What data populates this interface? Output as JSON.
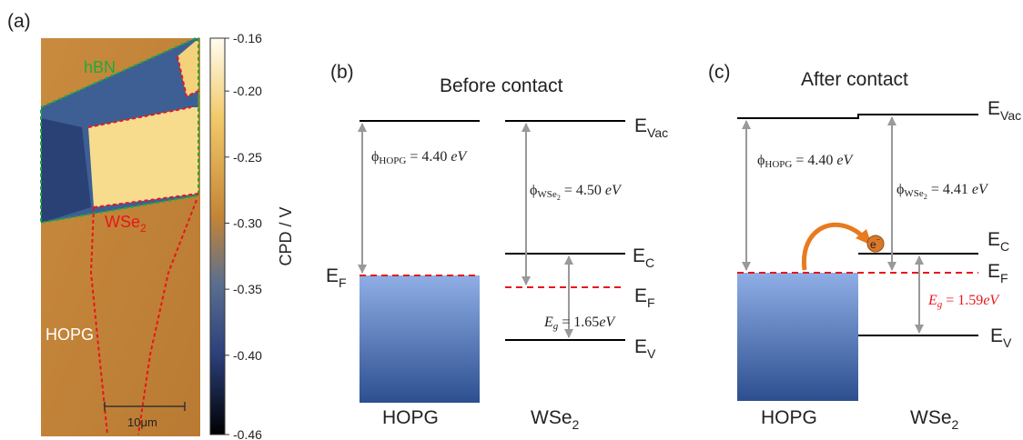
{
  "panel_a": {
    "label": "(a)",
    "hbn": "hBN",
    "wse2": {
      "main": "WSe",
      "sub": "2"
    },
    "hopg": "HOPG",
    "scale_bar": "10μm"
  },
  "colorbar": {
    "title": "CPD / V",
    "ticks": [
      {
        "value": -0.16,
        "label": "-0.16"
      },
      {
        "value": -0.2,
        "label": "-0.20"
      },
      {
        "value": -0.25,
        "label": "-0.25"
      },
      {
        "value": -0.3,
        "label": "-0.30"
      },
      {
        "value": -0.35,
        "label": "-0.35"
      },
      {
        "value": -0.4,
        "label": "-0.40"
      },
      {
        "value": -0.46,
        "label": "-0.46"
      }
    ]
  },
  "panel_b": {
    "label": "(b)",
    "title": "Before contact",
    "e_vac": {
      "main": "E",
      "sub": "Vac"
    },
    "e_c": {
      "main": "E",
      "sub": "C"
    },
    "e_f_right": {
      "main": "E",
      "sub": "F"
    },
    "e_v": {
      "main": "E",
      "sub": "V"
    },
    "e_f_left": {
      "main": "E",
      "sub": "F"
    },
    "phi_hopg": {
      "symbol": "ϕ",
      "sub": "HOPG",
      "eq": " = 4.40 ",
      "unit": "eV"
    },
    "phi_wse2": {
      "symbol": "ϕ",
      "sub": "WSe",
      "subsub": "2",
      "eq": " = 4.50 ",
      "unit": "eV"
    },
    "eg": {
      "symbol": "E",
      "sub": "g",
      "eq": " = 1.65",
      "unit": "eV"
    },
    "hopg": "HOPG",
    "wse2": {
      "main": "WSe",
      "sub": "2"
    }
  },
  "panel_c": {
    "label": "(c)",
    "title": "After contact",
    "e_vac": {
      "main": "E",
      "sub": "Vac"
    },
    "e_c": {
      "main": "E",
      "sub": "C"
    },
    "e_f": {
      "main": "E",
      "sub": "F"
    },
    "e_v": {
      "main": "E",
      "sub": "V"
    },
    "electron": "e",
    "phi_hopg": {
      "symbol": "ϕ",
      "sub": "HOPG",
      "eq": " = 4.40 ",
      "unit": "eV"
    },
    "phi_wse2": {
      "symbol": "ϕ",
      "sub": "WSe",
      "subsub": "2",
      "eq": " = 4.41 ",
      "unit": "eV"
    },
    "eg": {
      "symbol": "E",
      "sub": "g",
      "eq": " = 1.59",
      "unit": "eV"
    },
    "hopg": "HOPG",
    "wse2": {
      "main": "WSe",
      "sub": "2"
    }
  }
}
